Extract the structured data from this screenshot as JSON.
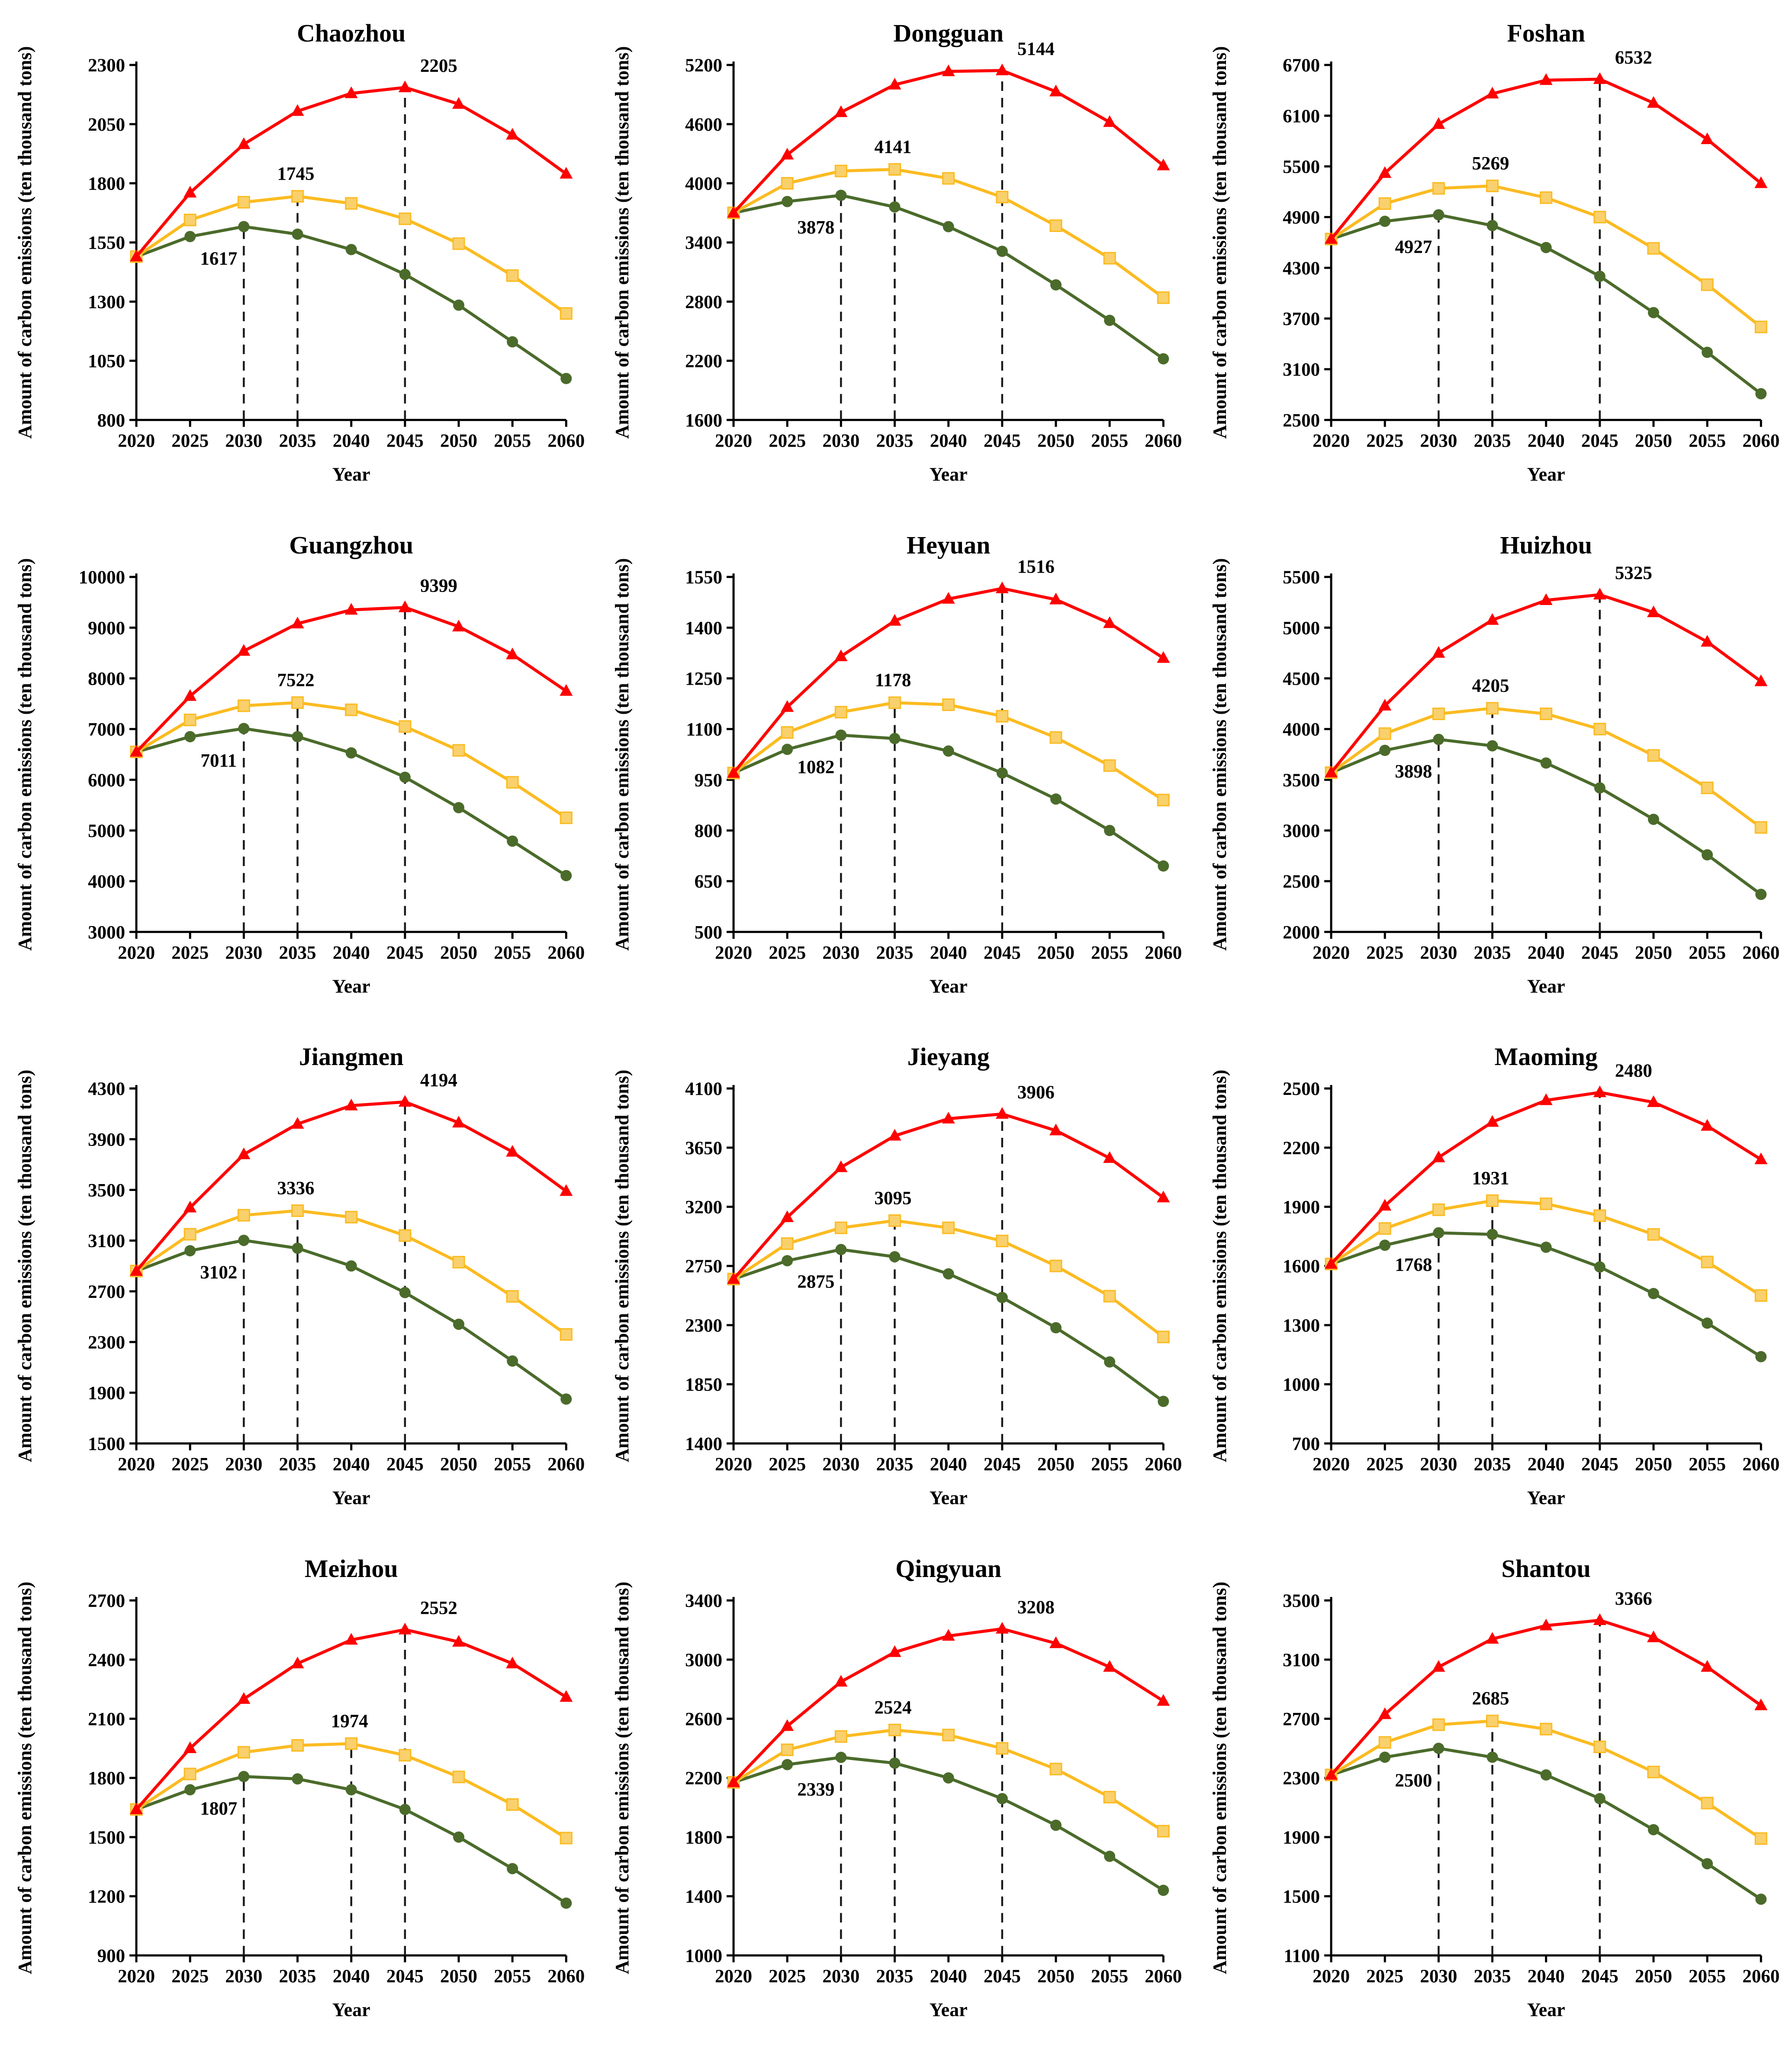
{
  "style": {
    "background": "#ffffff",
    "red": "#FE0000",
    "yellow": "#FBBB21",
    "yellow_fill": "#F9D06B",
    "green": "#4B6B2B",
    "axis_color": "#000000",
    "dash_color": "#1a1a1a"
  },
  "years": [
    2020,
    2025,
    2030,
    2035,
    2040,
    2045,
    2050,
    2055,
    2060
  ],
  "axis_labels": {
    "y": "Amount of carbon emissions (ten thousand tons)",
    "x": "Year"
  },
  "chart_data": [
    {
      "type": "line",
      "title": "Chaozhou",
      "ylim": [
        800,
        2300
      ],
      "ytick": 250,
      "series": [
        {
          "name": "red",
          "values": [
            1490,
            1760,
            1965,
            2105,
            2180,
            2205,
            2135,
            2005,
            1840
          ]
        },
        {
          "name": "yellow",
          "values": [
            1490,
            1645,
            1720,
            1745,
            1715,
            1650,
            1545,
            1410,
            1250
          ]
        },
        {
          "name": "green",
          "values": [
            1490,
            1575,
            1617,
            1585,
            1520,
            1415,
            1285,
            1130,
            975
          ]
        }
      ],
      "peaks": {
        "red": {
          "year": 2045,
          "label": "2205"
        },
        "yellow": {
          "year": 2035,
          "label": "1745"
        },
        "green": {
          "year": 2030,
          "label": "1617"
        }
      },
      "dashed": [
        {
          "year": 2030,
          "series": "green"
        },
        {
          "year": 2035,
          "series": "yellow"
        },
        {
          "year": 2045,
          "series": "red"
        }
      ]
    },
    {
      "type": "line",
      "title": "Dongguan",
      "ylim": [
        1600,
        5200
      ],
      "ytick": 600,
      "series": [
        {
          "name": "red",
          "values": [
            3700,
            4290,
            4720,
            5000,
            5135,
            5144,
            4930,
            4620,
            4180
          ]
        },
        {
          "name": "yellow",
          "values": [
            3700,
            4000,
            4125,
            4141,
            4050,
            3860,
            3570,
            3240,
            2840
          ]
        },
        {
          "name": "green",
          "values": [
            3700,
            3815,
            3878,
            3760,
            3560,
            3310,
            2970,
            2610,
            2220
          ]
        }
      ],
      "peaks": {
        "red": {
          "year": 2045,
          "label": "5144"
        },
        "yellow": {
          "year": 2035,
          "label": "4141"
        },
        "green": {
          "year": 2030,
          "label": "3878"
        }
      },
      "dashed": [
        {
          "year": 2030,
          "series": "green"
        },
        {
          "year": 2035,
          "series": "yellow"
        },
        {
          "year": 2045,
          "series": "red"
        }
      ]
    },
    {
      "type": "line",
      "title": "Foshan",
      "ylim": [
        2500,
        6700
      ],
      "ytick": 600,
      "series": [
        {
          "name": "red",
          "values": [
            4640,
            5420,
            6000,
            6360,
            6520,
            6532,
            6250,
            5820,
            5300
          ]
        },
        {
          "name": "yellow",
          "values": [
            4640,
            5060,
            5240,
            5269,
            5130,
            4900,
            4530,
            4100,
            3600
          ]
        },
        {
          "name": "green",
          "values": [
            4640,
            4850,
            4927,
            4800,
            4540,
            4200,
            3770,
            3300,
            2810
          ]
        }
      ],
      "peaks": {
        "red": {
          "year": 2045,
          "label": "6532"
        },
        "yellow": {
          "year": 2035,
          "label": "5269"
        },
        "green": {
          "year": 2030,
          "label": "4927"
        }
      },
      "dashed": [
        {
          "year": 2030,
          "series": "green"
        },
        {
          "year": 2035,
          "series": "yellow"
        },
        {
          "year": 2045,
          "series": "red"
        }
      ]
    },
    {
      "type": "line",
      "title": "Guangzhou",
      "ylim": [
        3000,
        10000
      ],
      "ytick": 1000,
      "series": [
        {
          "name": "red",
          "values": [
            6550,
            7650,
            8540,
            9080,
            9350,
            9399,
            9020,
            8470,
            7750
          ]
        },
        {
          "name": "yellow",
          "values": [
            6550,
            7180,
            7460,
            7522,
            7380,
            7050,
            6580,
            5950,
            5250
          ]
        },
        {
          "name": "green",
          "values": [
            6550,
            6850,
            7011,
            6850,
            6530,
            6050,
            5450,
            4790,
            4110
          ]
        }
      ],
      "peaks": {
        "red": {
          "year": 2045,
          "label": "9399"
        },
        "yellow": {
          "year": 2035,
          "label": "7522"
        },
        "green": {
          "year": 2030,
          "label": "7011"
        }
      },
      "dashed": [
        {
          "year": 2030,
          "series": "green"
        },
        {
          "year": 2035,
          "series": "yellow"
        },
        {
          "year": 2045,
          "series": "red"
        }
      ]
    },
    {
      "type": "line",
      "title": "Heyuan",
      "ylim": [
        500,
        1550
      ],
      "ytick": 150,
      "series": [
        {
          "name": "red",
          "values": [
            970,
            1165,
            1315,
            1420,
            1485,
            1516,
            1483,
            1413,
            1310
          ]
        },
        {
          "name": "yellow",
          "values": [
            970,
            1090,
            1150,
            1178,
            1172,
            1138,
            1075,
            992,
            890
          ]
        },
        {
          "name": "green",
          "values": [
            970,
            1040,
            1082,
            1072,
            1035,
            970,
            893,
            800,
            695
          ]
        }
      ],
      "peaks": {
        "red": {
          "year": 2045,
          "label": "1516"
        },
        "yellow": {
          "year": 2035,
          "label": "1178"
        },
        "green": {
          "year": 2030,
          "label": "1082"
        }
      },
      "dashed": [
        {
          "year": 2030,
          "series": "green"
        },
        {
          "year": 2035,
          "series": "yellow"
        },
        {
          "year": 2045,
          "series": "red"
        }
      ]
    },
    {
      "type": "line",
      "title": "Huizhou",
      "ylim": [
        2000,
        5500
      ],
      "ytick": 500,
      "series": [
        {
          "name": "red",
          "values": [
            3570,
            4230,
            4750,
            5075,
            5270,
            5325,
            5150,
            4860,
            4470
          ]
        },
        {
          "name": "yellow",
          "values": [
            3570,
            3955,
            4150,
            4205,
            4150,
            4000,
            3740,
            3420,
            3030
          ]
        },
        {
          "name": "green",
          "values": [
            3570,
            3790,
            3898,
            3835,
            3665,
            3420,
            3110,
            2760,
            2370
          ]
        }
      ],
      "peaks": {
        "red": {
          "year": 2045,
          "label": "5325"
        },
        "yellow": {
          "year": 2035,
          "label": "4205"
        },
        "green": {
          "year": 2030,
          "label": "3898"
        }
      },
      "dashed": [
        {
          "year": 2030,
          "series": "green"
        },
        {
          "year": 2035,
          "series": "yellow"
        },
        {
          "year": 2045,
          "series": "red"
        }
      ]
    },
    {
      "type": "line",
      "title": "Jiangmen",
      "ylim": [
        1500,
        4300
      ],
      "ytick": 400,
      "series": [
        {
          "name": "red",
          "values": [
            2860,
            3360,
            3780,
            4020,
            4165,
            4194,
            4030,
            3800,
            3490
          ]
        },
        {
          "name": "yellow",
          "values": [
            2860,
            3150,
            3300,
            3336,
            3285,
            3140,
            2930,
            2660,
            2360
          ]
        },
        {
          "name": "green",
          "values": [
            2860,
            3020,
            3102,
            3040,
            2900,
            2690,
            2440,
            2150,
            1850
          ]
        }
      ],
      "peaks": {
        "red": {
          "year": 2045,
          "label": "4194"
        },
        "yellow": {
          "year": 2035,
          "label": "3336"
        },
        "green": {
          "year": 2030,
          "label": "3102"
        }
      },
      "dashed": [
        {
          "year": 2030,
          "series": "green"
        },
        {
          "year": 2035,
          "series": "yellow"
        },
        {
          "year": 2045,
          "series": "red"
        }
      ]
    },
    {
      "type": "line",
      "title": "Jieyang",
      "ylim": [
        1400,
        4100
      ],
      "ytick": 450,
      "series": [
        {
          "name": "red",
          "values": [
            2650,
            3120,
            3500,
            3740,
            3870,
            3906,
            3780,
            3570,
            3270
          ]
        },
        {
          "name": "yellow",
          "values": [
            2650,
            2920,
            3040,
            3095,
            3040,
            2940,
            2750,
            2520,
            2210
          ]
        },
        {
          "name": "green",
          "values": [
            2650,
            2790,
            2875,
            2820,
            2690,
            2510,
            2280,
            2020,
            1720
          ]
        }
      ],
      "peaks": {
        "red": {
          "year": 2045,
          "label": "3906"
        },
        "yellow": {
          "year": 2035,
          "label": "3095"
        },
        "green": {
          "year": 2030,
          "label": "2875"
        }
      },
      "dashed": [
        {
          "year": 2030,
          "series": "green"
        },
        {
          "year": 2035,
          "series": "yellow"
        },
        {
          "year": 2045,
          "series": "red"
        }
      ]
    },
    {
      "type": "line",
      "title": "Maoming",
      "ylim": [
        700,
        2500
      ],
      "ytick": 300,
      "series": [
        {
          "name": "red",
          "values": [
            1610,
            1905,
            2150,
            2330,
            2440,
            2480,
            2430,
            2310,
            2140
          ]
        },
        {
          "name": "yellow",
          "values": [
            1610,
            1790,
            1885,
            1931,
            1915,
            1855,
            1760,
            1620,
            1450
          ]
        },
        {
          "name": "green",
          "values": [
            1610,
            1705,
            1768,
            1760,
            1695,
            1595,
            1460,
            1310,
            1140
          ]
        }
      ],
      "peaks": {
        "red": {
          "year": 2045,
          "label": "2480"
        },
        "yellow": {
          "year": 2035,
          "label": "1931"
        },
        "green": {
          "year": 2030,
          "label": "1768"
        }
      },
      "dashed": [
        {
          "year": 2030,
          "series": "green"
        },
        {
          "year": 2035,
          "series": "yellow"
        },
        {
          "year": 2045,
          "series": "red"
        }
      ]
    },
    {
      "type": "line",
      "title": "Meizhou",
      "ylim": [
        900,
        2700
      ],
      "ytick": 300,
      "series": [
        {
          "name": "red",
          "values": [
            1640,
            1950,
            2200,
            2380,
            2500,
            2552,
            2490,
            2380,
            2210
          ]
        },
        {
          "name": "yellow",
          "values": [
            1640,
            1820,
            1930,
            1965,
            1974,
            1915,
            1805,
            1665,
            1495
          ]
        },
        {
          "name": "green",
          "values": [
            1640,
            1740,
            1807,
            1795,
            1740,
            1640,
            1500,
            1340,
            1165
          ]
        }
      ],
      "peaks": {
        "red": {
          "year": 2045,
          "label": "2552"
        },
        "yellow": {
          "year": 2040,
          "label": "1974"
        },
        "green": {
          "year": 2030,
          "label": "1807"
        }
      },
      "dashed": [
        {
          "year": 2030,
          "series": "green"
        },
        {
          "year": 2040,
          "series": "yellow"
        },
        {
          "year": 2045,
          "series": "red"
        }
      ]
    },
    {
      "type": "line",
      "title": "Qingyuan",
      "ylim": [
        1000,
        3400
      ],
      "ytick": 400,
      "series": [
        {
          "name": "red",
          "values": [
            2170,
            2550,
            2850,
            3050,
            3160,
            3208,
            3110,
            2950,
            2720
          ]
        },
        {
          "name": "yellow",
          "values": [
            2170,
            2390,
            2480,
            2524,
            2490,
            2400,
            2260,
            2070,
            1840
          ]
        },
        {
          "name": "green",
          "values": [
            2170,
            2290,
            2339,
            2300,
            2200,
            2060,
            1880,
            1670,
            1440
          ]
        }
      ],
      "peaks": {
        "red": {
          "year": 2045,
          "label": "3208"
        },
        "yellow": {
          "year": 2035,
          "label": "2524"
        },
        "green": {
          "year": 2030,
          "label": "2339"
        }
      },
      "dashed": [
        {
          "year": 2030,
          "series": "green"
        },
        {
          "year": 2035,
          "series": "yellow"
        },
        {
          "year": 2045,
          "series": "red"
        }
      ]
    },
    {
      "type": "line",
      "title": "Shantou",
      "ylim": [
        1100,
        3500
      ],
      "ytick": 400,
      "series": [
        {
          "name": "red",
          "values": [
            2320,
            2730,
            3050,
            3240,
            3330,
            3366,
            3250,
            3050,
            2790
          ]
        },
        {
          "name": "yellow",
          "values": [
            2320,
            2540,
            2660,
            2685,
            2630,
            2510,
            2340,
            2130,
            1890
          ]
        },
        {
          "name": "green",
          "values": [
            2320,
            2440,
            2500,
            2440,
            2320,
            2160,
            1950,
            1720,
            1480
          ]
        }
      ],
      "peaks": {
        "red": {
          "year": 2045,
          "label": "3366"
        },
        "yellow": {
          "year": 2035,
          "label": "2685"
        },
        "green": {
          "year": 2030,
          "label": "2500"
        }
      },
      "dashed": [
        {
          "year": 2030,
          "series": "green"
        },
        {
          "year": 2035,
          "series": "yellow"
        },
        {
          "year": 2045,
          "series": "red"
        }
      ]
    }
  ]
}
